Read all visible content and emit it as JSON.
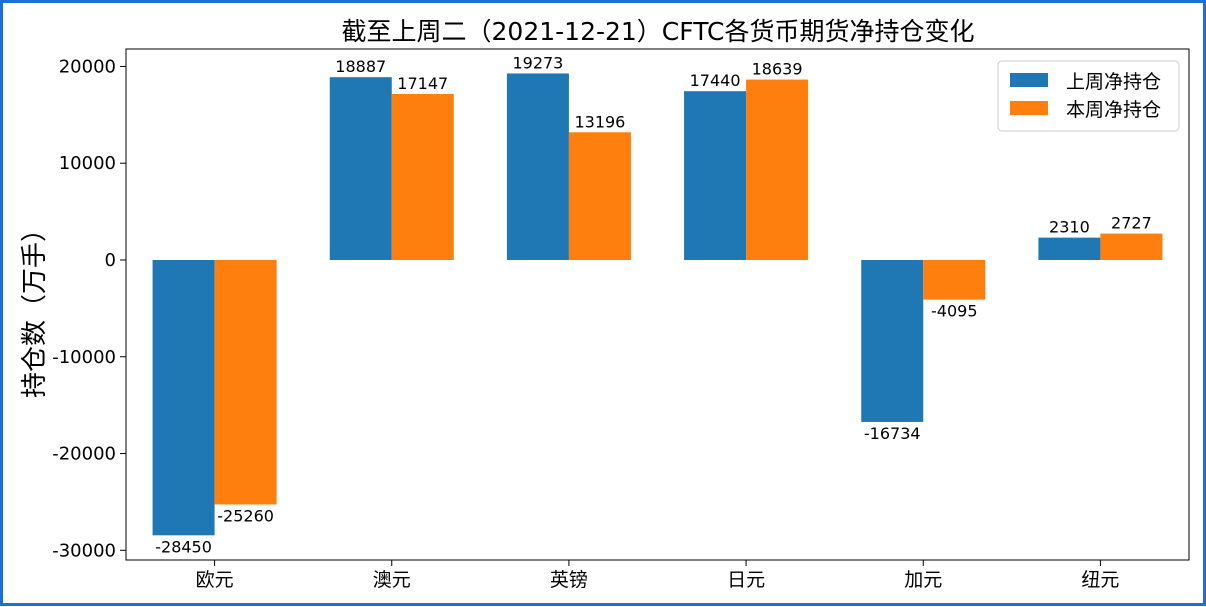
{
  "chart_data": {
    "type": "bar",
    "title": "截至上周二（2021-12-21）CFTC各货币期货净持仓变化",
    "xlabel": "",
    "ylabel": "持仓数（万手）",
    "categories": [
      "欧元",
      "澳元",
      "英镑",
      "日元",
      "加元",
      "纽元"
    ],
    "series": [
      {
        "name": "上周净持仓",
        "color": "#1f77b4",
        "values": [
          -28450,
          18887,
          19273,
          17440,
          -16734,
          2310
        ]
      },
      {
        "name": "本周净持仓",
        "color": "#ff7f0e",
        "values": [
          -25260,
          17147,
          13196,
          18639,
          -4095,
          2727
        ]
      }
    ],
    "ylim": [
      -31000,
      21800
    ],
    "yticks": [
      -30000,
      -20000,
      -10000,
      0,
      10000,
      20000
    ],
    "grid": false,
    "legend_position": "top-right"
  }
}
